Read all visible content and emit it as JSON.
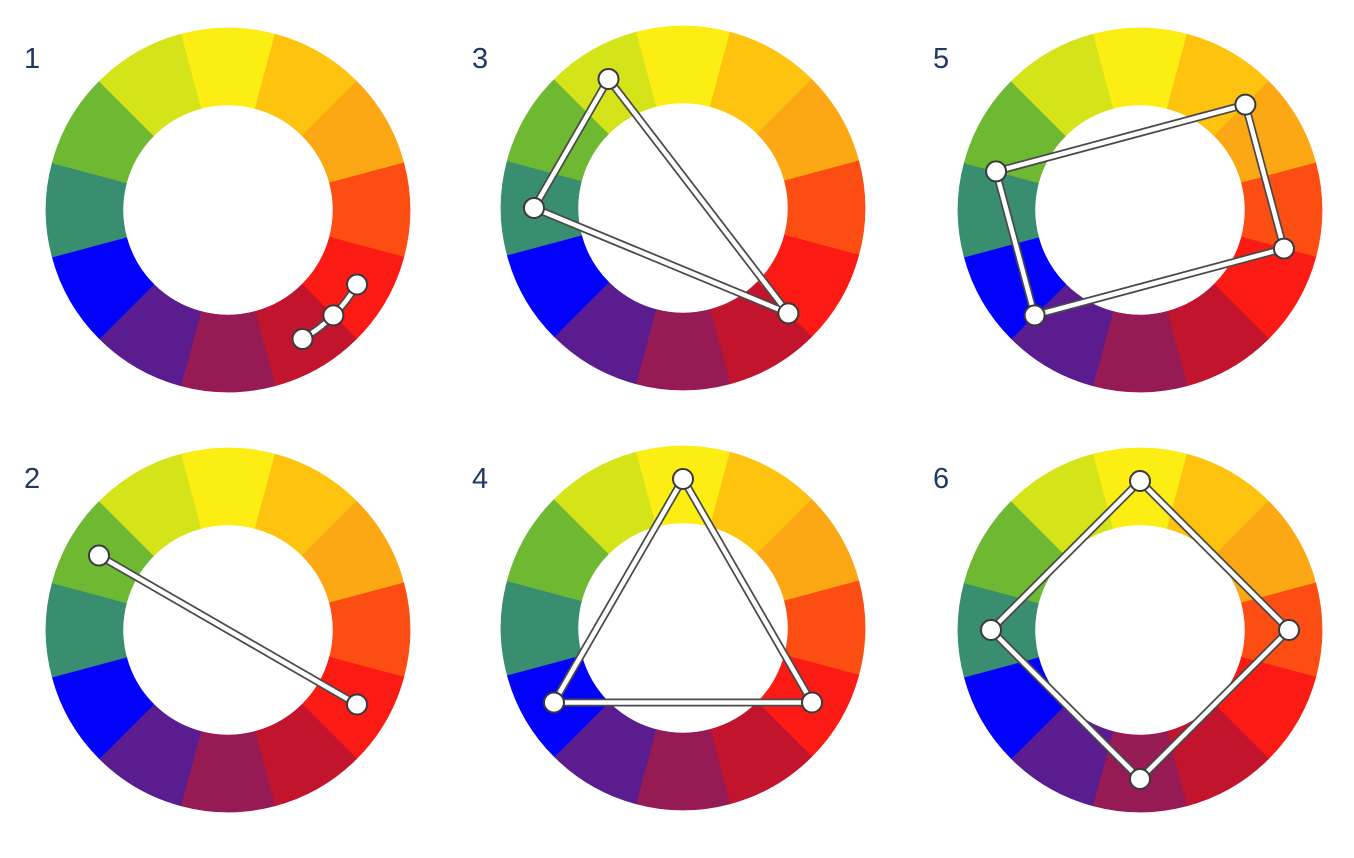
{
  "colors": {
    "wheel": [
      "#fcee13",
      "#fdc30f",
      "#fca714",
      "#fc4e12",
      "#fb1b14",
      "#c2142c",
      "#961a54",
      "#5a1c8f",
      "#0202fc",
      "#398e6f",
      "#6eb832",
      "#d5e419"
    ],
    "label_text": "#1f3864",
    "link_fill": "#ffffff",
    "link_outline": "#4a4a4a",
    "background": "#ffffff"
  },
  "diagrams": [
    {
      "label": "1",
      "scheme": "arc",
      "markers": [
        4,
        4.5,
        5
      ]
    },
    {
      "label": "2",
      "scheme": "open",
      "markers": [
        10,
        4
      ]
    },
    {
      "label": "3",
      "scheme": "closed",
      "markers": [
        11,
        4.5,
        9
      ]
    },
    {
      "label": "4",
      "scheme": "closed",
      "markers": [
        0,
        4,
        8
      ]
    },
    {
      "label": "5",
      "scheme": "closed",
      "markers": [
        1.5,
        3.5,
        7.5,
        9.5
      ]
    },
    {
      "label": "6",
      "scheme": "closed",
      "markers": [
        0,
        3,
        6,
        9
      ]
    }
  ]
}
